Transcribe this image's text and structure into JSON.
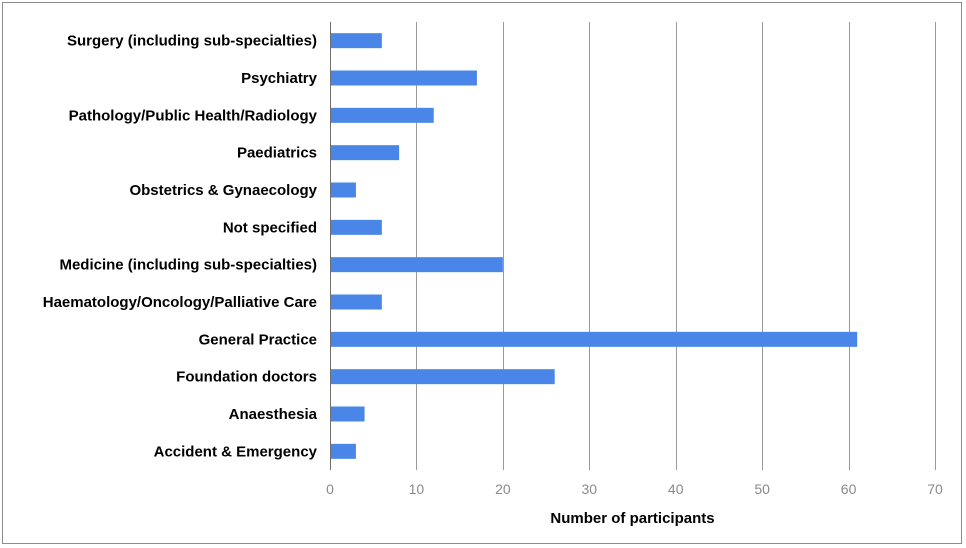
{
  "chart_data": {
    "type": "bar",
    "orientation": "horizontal",
    "categories": [
      "Surgery (including sub-specialties)",
      "Psychiatry",
      "Pathology/Public Health/Radiology",
      "Paediatrics",
      "Obstetrics & Gynaecology",
      "Not specified",
      "Medicine (including sub-specialties)",
      "Haematology/Oncology/Palliative Care",
      "General Practice",
      "Foundation doctors",
      "Anaesthesia",
      "Accident & Emergency"
    ],
    "values": [
      6,
      17,
      12,
      8,
      3,
      6,
      20,
      6,
      61,
      26,
      4,
      3
    ],
    "xlabel": "Number of participants",
    "ylabel": "",
    "xlim": [
      0,
      70
    ],
    "xticks": [
      "0",
      "10",
      "20",
      "30",
      "40",
      "50",
      "60",
      "70"
    ],
    "grid": "vertical",
    "bar_color": "#4a86e8",
    "grid_color": "#9a9a9a"
  }
}
